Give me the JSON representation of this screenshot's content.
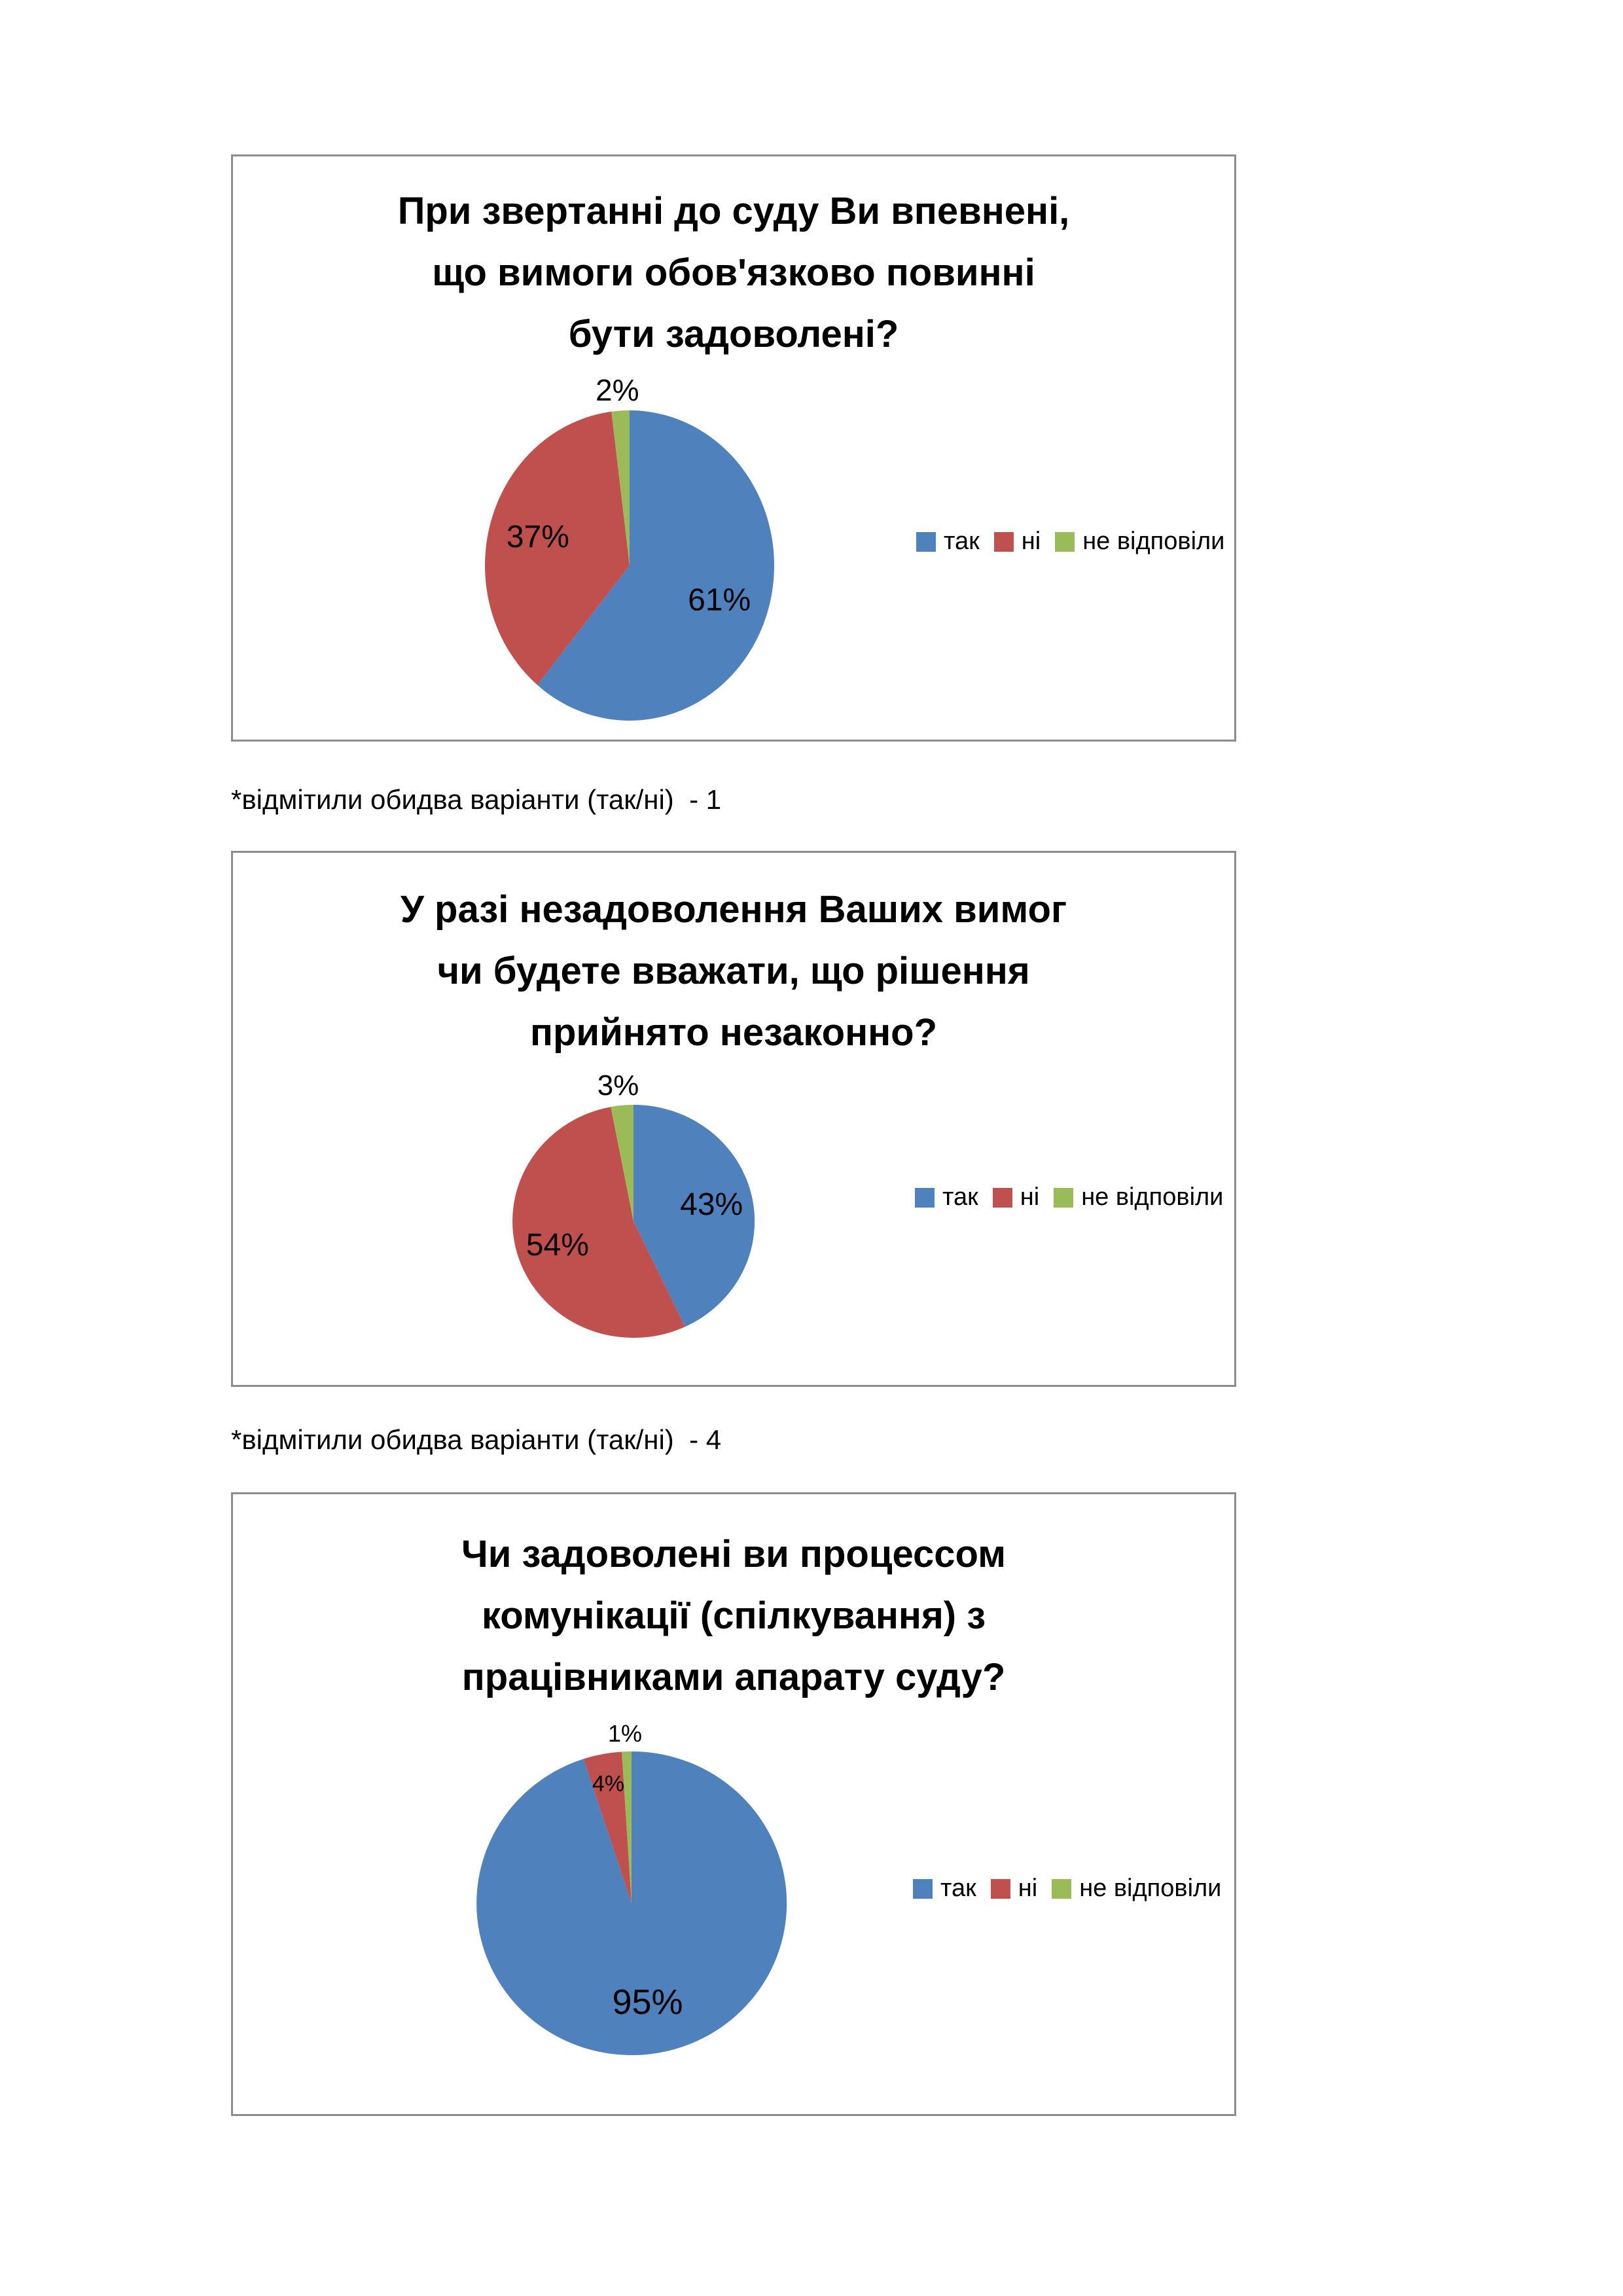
{
  "page": {
    "background": "#ffffff",
    "panel_border_color": "#8c8c8c"
  },
  "legend": {
    "items": [
      {
        "label": "так",
        "color": "#4F81BD"
      },
      {
        "label": "ні",
        "color": "#C0504D"
      },
      {
        "label": "не відповіли",
        "color": "#9BBB59"
      }
    ]
  },
  "footnotes": [
    {
      "text": "*відмітили обидва варіанти (так/ні)  - 1"
    },
    {
      "text": "*відмітили обидва варіанти (так/ні)  - 4"
    }
  ],
  "chart_data": [
    {
      "type": "pie",
      "title": "При звертанні до суду Ви впевнені, що вимоги обов'язково повинні бути задоволені?",
      "title_lines": [
        "При звертанні до суду Ви впевнені,",
        "що вимоги обов'язково повинні",
        "бути задоволені?"
      ],
      "categories": [
        "так",
        "ні",
        "не відповіли"
      ],
      "values": [
        61,
        37,
        2
      ],
      "unit": "%",
      "colors": [
        "#4F81BD",
        "#C0504D",
        "#9BBB59"
      ],
      "legend_position": "right",
      "start_angle": 0,
      "clockwise": true,
      "label_font": 48,
      "small_label_font": 36,
      "outside_label_font": 46
    },
    {
      "type": "pie",
      "title": "У разі незадоволення Ваших вимог чи будете вважати, що рішення прийнято незаконно?",
      "title_lines": [
        "У разі незадоволення Ваших вимог",
        "чи будете вважати, що рішення",
        "прийнято незаконно?"
      ],
      "categories": [
        "так",
        "ні",
        "не відповіли"
      ],
      "values": [
        43,
        54,
        3
      ],
      "unit": "%",
      "colors": [
        "#4F81BD",
        "#C0504D",
        "#9BBB59"
      ],
      "legend_position": "right",
      "start_angle": 0,
      "clockwise": true,
      "label_font": 48,
      "small_label_font": 36,
      "outside_label_font": 44
    },
    {
      "type": "pie",
      "title": "Чи задоволені ви процессом комунікації (спілкування) з працівниками апарату суду?",
      "title_lines": [
        "Чи задоволені ви процессом",
        "комунікації (спілкування) з",
        "працівниками апарату суду?"
      ],
      "categories": [
        "так",
        "ні",
        "не відповіли"
      ],
      "values": [
        95,
        4,
        1
      ],
      "unit": "%",
      "colors": [
        "#4F81BD",
        "#C0504D",
        "#9BBB59"
      ],
      "legend_position": "right",
      "start_angle": 0,
      "clockwise": true,
      "label_font": 54,
      "small_label_font": 34,
      "outside_label_font": 36
    }
  ]
}
